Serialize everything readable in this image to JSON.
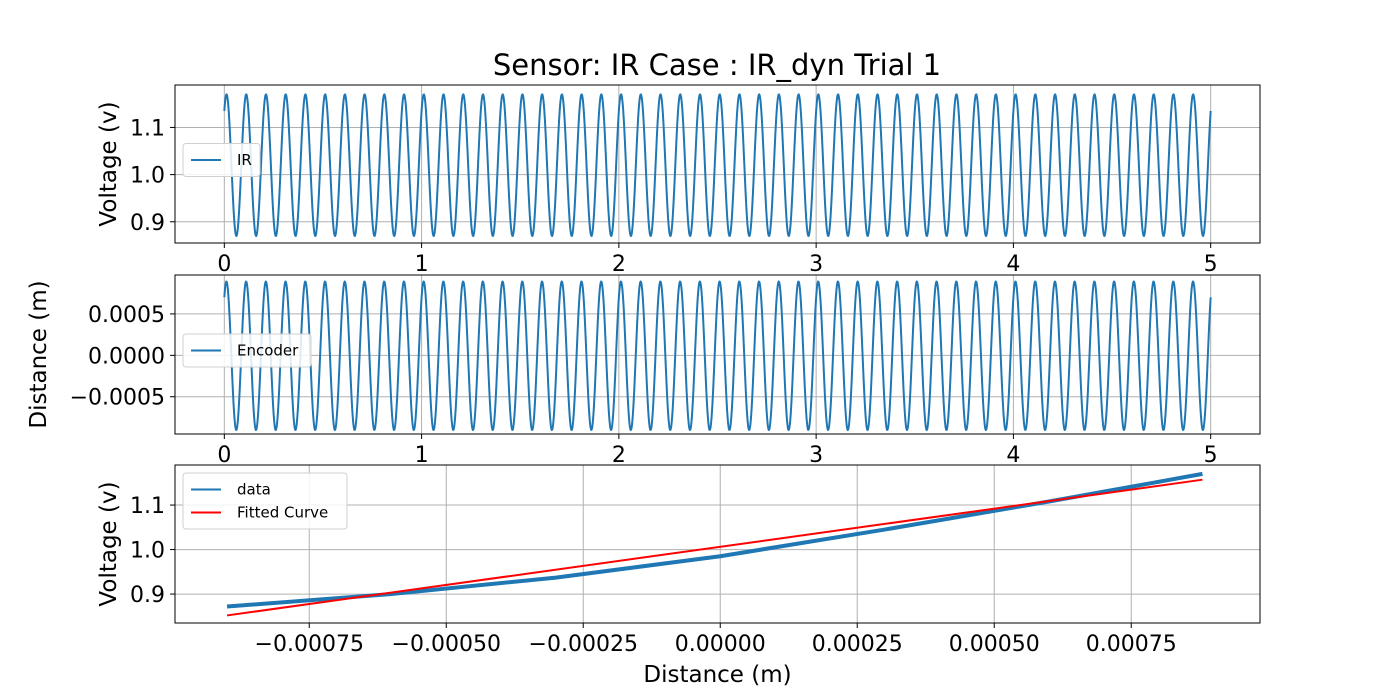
{
  "figure": {
    "title": "Sensor: IR Case : IR_dyn Trial 1"
  },
  "colors": {
    "series_blue": "#1f77b4",
    "fit_red": "#ff0000",
    "grid": "#b0b0b0"
  },
  "chart_data": [
    {
      "type": "line",
      "ylabel": "Voltage (v)",
      "xlabel": "",
      "xlim": [
        -0.25,
        5.25
      ],
      "ylim": [
        0.855,
        1.19
      ],
      "xticks": [
        "0",
        "1",
        "2",
        "3",
        "4",
        "5"
      ],
      "yticks": [
        "0.9",
        "1.0",
        "1.1"
      ],
      "grid": true,
      "legend_position": "center-left",
      "series": [
        {
          "name": "IR",
          "color": "#1f77b4",
          "kind": "sine",
          "x_start": 0,
          "x_end": 5,
          "frequency_hz": 10,
          "center": 1.02,
          "amplitude": 0.15,
          "start_value": 1.135
        }
      ]
    },
    {
      "type": "line",
      "ylabel": "Distance (m)",
      "xlabel": "",
      "xlim": [
        -0.25,
        5.25
      ],
      "ylim": [
        -0.00095,
        0.00097
      ],
      "xticks": [
        "0",
        "1",
        "2",
        "3",
        "4",
        "5"
      ],
      "yticks": [
        "−0.0005",
        "0.0000",
        "0.0005"
      ],
      "grid": true,
      "legend_position": "center-left",
      "series": [
        {
          "name": "Encoder",
          "color": "#1f77b4",
          "kind": "sine",
          "x_start": 0,
          "x_end": 5,
          "frequency_hz": 10,
          "center": -5e-06,
          "amplitude": 0.000895,
          "start_value": 0.0007
        }
      ]
    },
    {
      "type": "line",
      "xlabel": "Distance (m)",
      "ylabel": "Voltage (v)",
      "xlim": [
        -0.000995,
        0.000985
      ],
      "ylim": [
        0.835,
        1.19
      ],
      "xticks": [
        "−0.00075",
        "−0.00050",
        "−0.00025",
        "0.00000",
        "0.00025",
        "0.00050",
        "0.00075"
      ],
      "yticks": [
        "0.9",
        "1.0",
        "1.1"
      ],
      "grid": true,
      "legend_position": "upper-left",
      "series": [
        {
          "name": "data",
          "color": "#1f77b4",
          "x": [
            -0.0009,
            -0.0006,
            -0.0003,
            0.0,
            0.0003,
            0.0006,
            0.00088
          ],
          "y": [
            0.872,
            0.9,
            0.937,
            0.985,
            1.045,
            1.108,
            1.17
          ]
        },
        {
          "name": "Fitted Curve",
          "color": "#ff0000",
          "x": [
            -0.0009,
            0.00088
          ],
          "y": [
            0.852,
            1.157
          ]
        }
      ]
    }
  ]
}
